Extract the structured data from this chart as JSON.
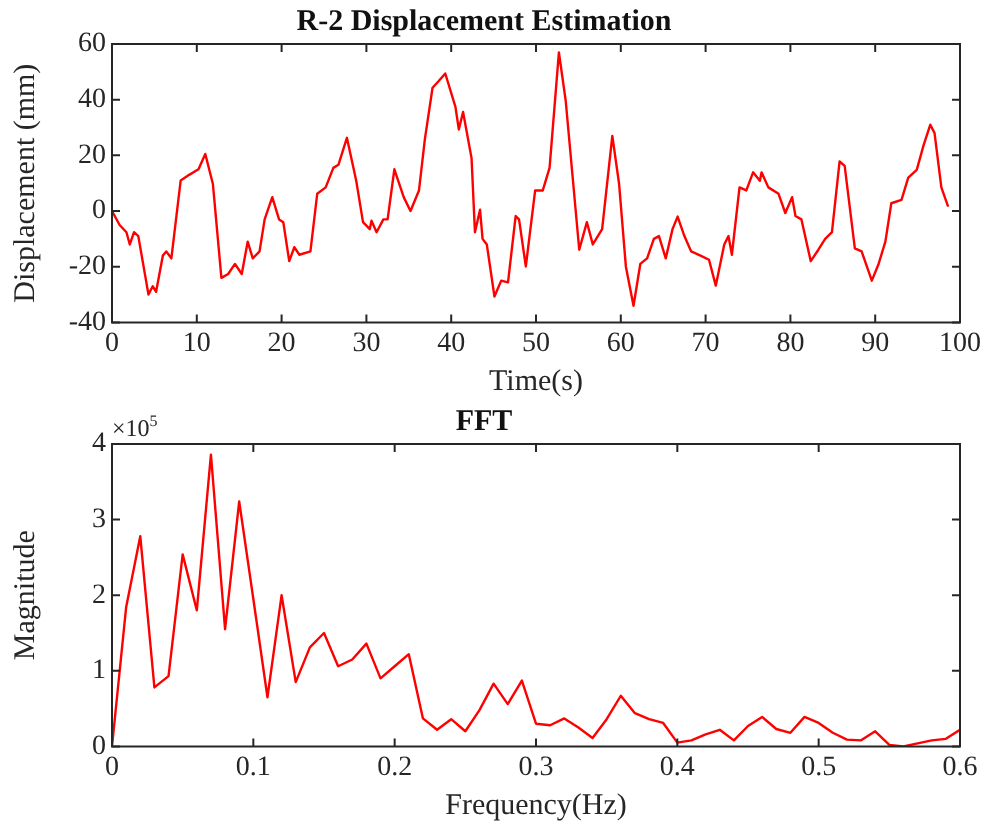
{
  "chart_data": [
    {
      "type": "line",
      "title": "R-2 Displacement Estimation",
      "xlabel": "Time(s)",
      "ylabel": "Displacement (mm)",
      "xlim": [
        0,
        100
      ],
      "xticks": [
        0,
        10,
        20,
        30,
        40,
        50,
        60,
        70,
        80,
        90,
        100
      ],
      "ylim": [
        -40,
        60
      ],
      "yticks": [
        -40,
        -20,
        0,
        20,
        40,
        60
      ],
      "series": [
        {
          "color": "#ff0000",
          "x": [
            0,
            0.9,
            1.7,
            2.1,
            2.6,
            3.1,
            4.3,
            4.8,
            5.2,
            6,
            6.4,
            7,
            8.1,
            9.1,
            10.2,
            11,
            11.9,
            12.9,
            13.7,
            14.5,
            15.3,
            16,
            16.6,
            17.4,
            18,
            18.9,
            19.7,
            20.2,
            20.9,
            21.5,
            22.1,
            23.4,
            24.2,
            25.2,
            26.1,
            26.7,
            27.7,
            28.8,
            29.6,
            30.4,
            30.6,
            31.2,
            32,
            32.5,
            33.3,
            34.4,
            35.2,
            36.2,
            36.9,
            37.8,
            38.5,
            39.3,
            40.5,
            40.9,
            41.4,
            42.4,
            42.8,
            43.4,
            43.7,
            44.2,
            45.1,
            45.9,
            46.7,
            47.6,
            48,
            48.8,
            49.9,
            50.8,
            51.6,
            52.7,
            53.5,
            55.1,
            56,
            56.7,
            57.8,
            59,
            59.8,
            60.6,
            61.5,
            62.3,
            63.1,
            63.9,
            64.5,
            65.3,
            66.1,
            66.7,
            67.5,
            68.3,
            69.4,
            70.4,
            71.2,
            72.2,
            72.7,
            73.1,
            74,
            74.8,
            75.6,
            76.4,
            76.6,
            77.4,
            78.6,
            79.4,
            80.2,
            80.6,
            81.3,
            82.4,
            83.3,
            84.1,
            84.9,
            85.8,
            86.4,
            87.6,
            88.4,
            89.6,
            90.4,
            91.2,
            91.9,
            93.1,
            93.9,
            94.9,
            95.7,
            96.5,
            97,
            97.8,
            98.6
          ],
          "values": [
            0,
            -5,
            -7.6,
            -12,
            -7.6,
            -9,
            -30,
            -27,
            -29,
            -16,
            -14.5,
            -17,
            11,
            13,
            15,
            20.5,
            9.7,
            -24,
            -22.6,
            -19,
            -22.6,
            -11,
            -17,
            -14.5,
            -3,
            5,
            -3,
            -4,
            -18,
            -13,
            -15.7,
            -14.5,
            6.2,
            8.5,
            15.5,
            16.6,
            26.3,
            10.9,
            -4,
            -6.5,
            -3.5,
            -7.6,
            -3,
            -3,
            15,
            5,
            0,
            7.4,
            25.9,
            44.3,
            46.6,
            49.4,
            37.4,
            29.3,
            35.6,
            19,
            -7.6,
            0.5,
            -10,
            -12,
            -30.7,
            -25,
            -25.6,
            -1.8,
            -3,
            -19.9,
            7.4,
            7.4,
            15.5,
            57,
            39.7,
            -13.9,
            -4,
            -12,
            -6.5,
            27,
            9.7,
            -20,
            -34,
            -19,
            -17,
            -10,
            -9,
            -17,
            -6.5,
            -2,
            -9,
            -14.5,
            -16,
            -17.5,
            -26.8,
            -12,
            -9,
            -15.7,
            8.5,
            7.4,
            13.9,
            10.9,
            13.9,
            8.5,
            6.2,
            -0.7,
            5,
            -1.8,
            -3,
            -18,
            -13.9,
            -10,
            -7.6,
            17.8,
            16.2,
            -13.4,
            -14.5,
            -25,
            -19,
            -11,
            2.8,
            4,
            12,
            14.8,
            23.6,
            31,
            28,
            8.5,
            1.6
          ]
        }
      ]
    },
    {
      "type": "line",
      "title": "FFT",
      "xlabel": "Frequency(Hz)",
      "ylabel": "Magnitude",
      "annotations": [
        "×10$^{5}$"
      ],
      "xlim": [
        0,
        0.6
      ],
      "xticks": [
        0,
        0.1,
        0.2,
        0.3,
        0.4,
        0.5,
        0.6
      ],
      "ylim": [
        0,
        4
      ],
      "yticks": [
        0,
        1,
        2,
        3,
        4
      ],
      "x": [
        0,
        0.01,
        0.02,
        0.03,
        0.04,
        0.05,
        0.06,
        0.07,
        0.08,
        0.09,
        0.1,
        0.11,
        0.12,
        0.13,
        0.14,
        0.15,
        0.16,
        0.17,
        0.18,
        0.19,
        0.2,
        0.21,
        0.22,
        0.23,
        0.24,
        0.25,
        0.26,
        0.27,
        0.28,
        0.29,
        0.3,
        0.31,
        0.32,
        0.33,
        0.34,
        0.35,
        0.36,
        0.37,
        0.38,
        0.39,
        0.4,
        0.41,
        0.42,
        0.43,
        0.44,
        0.45,
        0.46,
        0.47,
        0.48,
        0.49,
        0.5,
        0.51,
        0.52,
        0.53,
        0.54,
        0.55,
        0.56,
        0.57,
        0.58,
        0.59,
        0.6
      ],
      "series": [
        {
          "color": "#ff0000",
          "values": [
            0,
            1.84,
            2.78,
            0.78,
            0.93,
            2.54,
            1.8,
            3.86,
            1.55,
            3.24,
            1.95,
            0.65,
            2.0,
            0.85,
            1.31,
            1.5,
            1.06,
            1.15,
            1.36,
            0.9,
            1.06,
            1.22,
            0.37,
            0.22,
            0.36,
            0.2,
            0.48,
            0.83,
            0.56,
            0.87,
            0.3,
            0.28,
            0.37,
            0.25,
            0.11,
            0.36,
            0.67,
            0.44,
            0.36,
            0.31,
            0.05,
            0.08,
            0.16,
            0.22,
            0.08,
            0.27,
            0.39,
            0.23,
            0.18,
            0.39,
            0.31,
            0.18,
            0.09,
            0.08,
            0.2,
            0.02,
            0,
            0.04,
            0.08,
            0.1,
            0.22
          ]
        }
      ]
    }
  ]
}
